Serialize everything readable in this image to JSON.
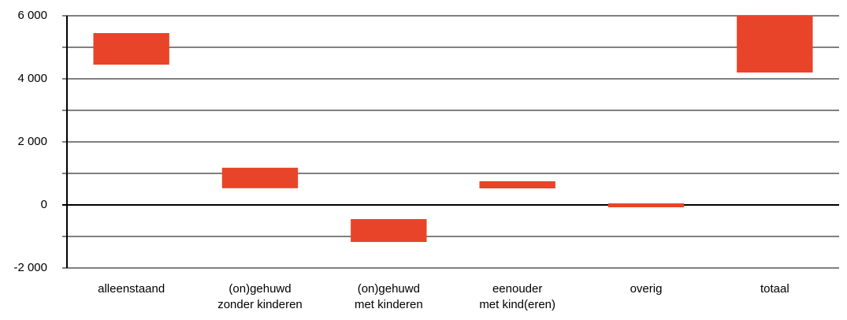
{
  "chart_data": {
    "type": "floating-bar",
    "categories": [
      [
        "alleenstaand"
      ],
      [
        "(on)gehuwd",
        "zonder kinderen"
      ],
      [
        "(on)gehuwd",
        "met kinderen"
      ],
      [
        "eenouder",
        "met kind(eren)"
      ],
      [
        "overig"
      ],
      [
        "totaal"
      ]
    ],
    "values": [
      [
        4450,
        5450
      ],
      [
        530,
        1180
      ],
      [
        -1175,
        -450
      ],
      [
        525,
        750
      ],
      [
        -75,
        50
      ],
      [
        4200,
        6000
      ]
    ],
    "color": "#e8442a",
    "ylim": [
      -2000,
      6000
    ],
    "yticks": [
      {
        "value": -2000,
        "label": "-2 000"
      },
      0,
      {
        "value": 2000,
        "label": "2 000"
      },
      {
        "value": 4000,
        "label": "4 000"
      },
      {
        "value": 6000,
        "label": "6 000"
      }
    ],
    "minor_yticks": [
      -1000,
      1000,
      3000,
      5000
    ],
    "grid": true
  }
}
